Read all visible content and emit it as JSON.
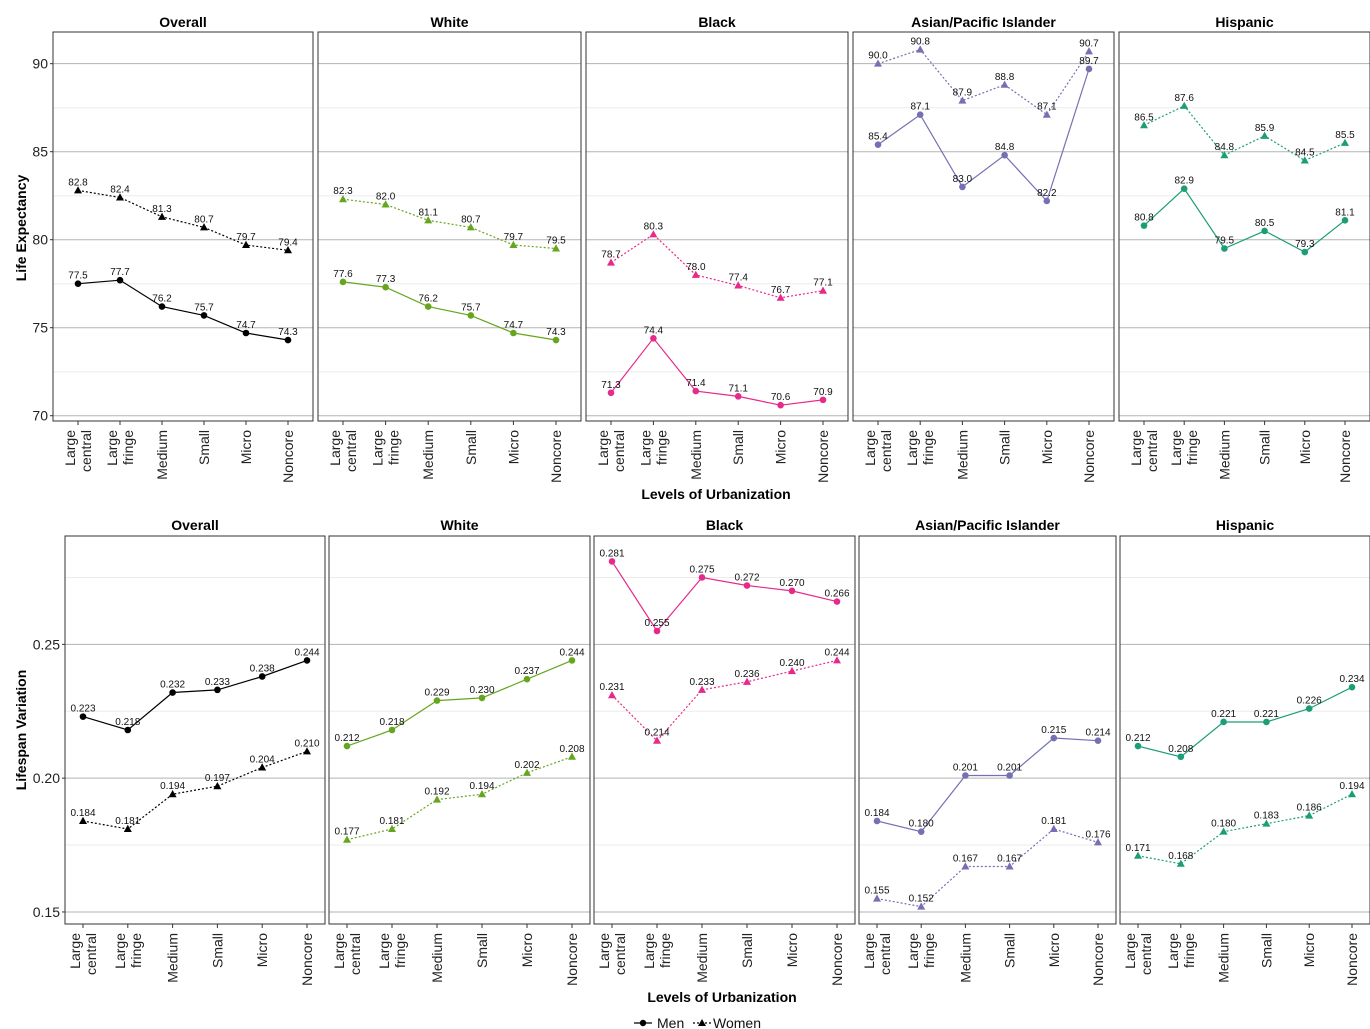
{
  "x_label": "Levels of Urbanization",
  "legend": {
    "men": "Men",
    "women": "Women"
  },
  "colors": {
    "Overall": "#000000",
    "White": "#66a61e",
    "Black": "#e7298a",
    "Asian/Pacific Islander": "#7570b3",
    "Hispanic": "#1b9e77",
    "major_grid": "#b3b3b3",
    "minor_grid": "#ebebeb"
  },
  "markers": {
    "men": "circle",
    "men_line": "solid",
    "women": "triangle",
    "women_line": "dotted"
  },
  "chart_data": [
    {
      "type": "line",
      "ylabel": "Life Expectancy",
      "ylim": [
        69.7,
        91.8
      ],
      "yticks": [
        70,
        75,
        80,
        85,
        90
      ],
      "ytick_labels": [
        "70",
        "75",
        "80",
        "85",
        "90"
      ],
      "categories": [
        [
          "Large",
          "central"
        ],
        [
          "Large",
          "fringe"
        ],
        [
          "Medium"
        ],
        [
          "Small"
        ],
        [
          "Micro"
        ],
        [
          "Noncore"
        ]
      ],
      "panels": [
        {
          "title": "Overall",
          "men": [
            77.5,
            77.7,
            76.2,
            75.7,
            74.7,
            74.3
          ],
          "women": [
            82.8,
            82.4,
            81.3,
            80.7,
            79.7,
            79.4
          ],
          "men_labels": [
            "77.5",
            "77.7",
            "76.2",
            "75.7",
            "74.7",
            "74.3"
          ],
          "women_labels": [
            "82.8",
            "82.4",
            "81.3",
            "80.7",
            "79.7",
            "79.4"
          ]
        },
        {
          "title": "White",
          "men": [
            77.6,
            77.3,
            76.2,
            75.7,
            74.7,
            74.3
          ],
          "women": [
            82.3,
            82.0,
            81.1,
            80.7,
            79.7,
            79.5
          ],
          "men_labels": [
            "77.6",
            "77.3",
            "76.2",
            "75.7",
            "74.7",
            "74.3"
          ],
          "women_labels": [
            "82.3",
            "82.0",
            "81.1",
            "80.7",
            "79.7",
            "79.5"
          ]
        },
        {
          "title": "Black",
          "men": [
            71.3,
            74.4,
            71.4,
            71.1,
            70.6,
            70.9
          ],
          "women": [
            78.7,
            80.3,
            78.0,
            77.4,
            76.7,
            77.1
          ],
          "men_labels": [
            "71.3",
            "74.4",
            "71.4",
            "71.1",
            "70.6",
            "70.9"
          ],
          "women_labels": [
            "78.7",
            "80.3",
            "78.0",
            "77.4",
            "76.7",
            "77.1"
          ]
        },
        {
          "title": "Asian/Pacific Islander",
          "men": [
            85.4,
            87.1,
            83.0,
            84.8,
            82.2,
            89.7
          ],
          "women": [
            90.0,
            90.8,
            87.9,
            88.8,
            87.1,
            90.7
          ],
          "men_labels": [
            "85.4",
            "87.1",
            "83.0",
            "84.8",
            "82.2",
            "89.7"
          ],
          "women_labels": [
            "90.0",
            "90.8",
            "87.9",
            "88.8",
            "87.1",
            "90.7"
          ]
        },
        {
          "title": "Hispanic",
          "men": [
            80.8,
            82.9,
            79.5,
            80.5,
            79.3,
            81.1
          ],
          "women": [
            86.5,
            87.6,
            84.8,
            85.9,
            84.5,
            85.5
          ],
          "men_labels": [
            "80.8",
            "82.9",
            "79.5",
            "80.5",
            "79.3",
            "81.1"
          ],
          "women_labels": [
            "86.5",
            "87.6",
            "84.8",
            "85.9",
            "84.5",
            "85.5"
          ]
        }
      ]
    },
    {
      "type": "line",
      "ylabel": "Lifespan Variation",
      "ylim": [
        0.1455,
        0.2905
      ],
      "yticks": [
        0.15,
        0.2,
        0.25
      ],
      "ytick_labels": [
        "0.15",
        "0.20",
        "0.25"
      ],
      "categories": [
        [
          "Large",
          "central"
        ],
        [
          "Large",
          "fringe"
        ],
        [
          "Medium"
        ],
        [
          "Small"
        ],
        [
          "Micro"
        ],
        [
          "Noncore"
        ]
      ],
      "panels": [
        {
          "title": "Overall",
          "men": [
            0.223,
            0.218,
            0.232,
            0.233,
            0.238,
            0.244
          ],
          "women": [
            0.184,
            0.181,
            0.194,
            0.197,
            0.204,
            0.21
          ],
          "men_labels": [
            "0.223",
            "0.218",
            "0.232",
            "0.233",
            "0.238",
            "0.244"
          ],
          "women_labels": [
            "0.184",
            "0.181",
            "0.194",
            "0.197",
            "0.204",
            "0.210"
          ]
        },
        {
          "title": "White",
          "men": [
            0.212,
            0.218,
            0.229,
            0.23,
            0.237,
            0.244
          ],
          "women": [
            0.177,
            0.181,
            0.192,
            0.194,
            0.202,
            0.208
          ],
          "men_labels": [
            "0.212",
            "0.218",
            "0.229",
            "0.230",
            "0.237",
            "0.244"
          ],
          "women_labels": [
            "0.177",
            "0.181",
            "0.192",
            "0.194",
            "0.202",
            "0.208"
          ]
        },
        {
          "title": "Black",
          "men": [
            0.281,
            0.255,
            0.275,
            0.272,
            0.27,
            0.266
          ],
          "women": [
            0.231,
            0.214,
            0.233,
            0.236,
            0.24,
            0.244
          ],
          "men_labels": [
            "0.281",
            "0.255",
            "0.275",
            "0.272",
            "0.270",
            "0.266"
          ],
          "women_labels": [
            "0.231",
            "0.214",
            "0.233",
            "0.236",
            "0.240",
            "0.244"
          ]
        },
        {
          "title": "Asian/Pacific Islander",
          "men": [
            0.184,
            0.18,
            0.201,
            0.201,
            0.215,
            0.214
          ],
          "women": [
            0.155,
            0.152,
            0.167,
            0.167,
            0.181,
            0.176
          ],
          "men_labels": [
            "0.184",
            "0.180",
            "0.201",
            "0.201",
            "0.215",
            "0.214"
          ],
          "women_labels": [
            "0.155",
            "0.152",
            "0.167",
            "0.167",
            "0.181",
            "0.176"
          ]
        },
        {
          "title": "Hispanic",
          "men": [
            0.212,
            0.208,
            0.221,
            0.221,
            0.226,
            0.234
          ],
          "women": [
            0.171,
            0.168,
            0.18,
            0.183,
            0.186,
            0.194
          ],
          "men_labels": [
            "0.212",
            "0.208",
            "0.221",
            "0.221",
            "0.226",
            "0.234"
          ],
          "women_labels": [
            "0.171",
            "0.168",
            "0.180",
            "0.183",
            "0.186",
            "0.194"
          ]
        }
      ]
    }
  ]
}
